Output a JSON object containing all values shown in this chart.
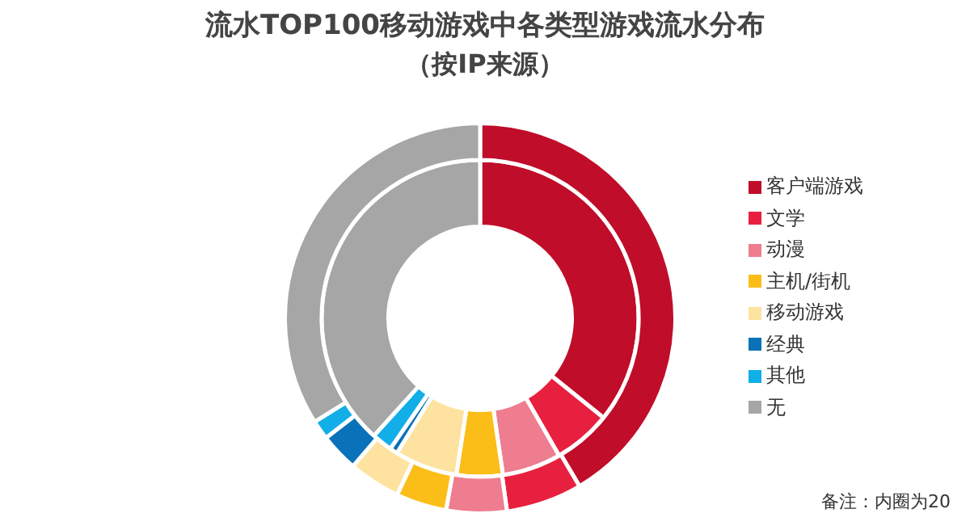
{
  "chart_data": {
    "type": "donut",
    "title": "流水TOP100移动游戏中各类型游戏流水分布",
    "subtitle": "（按IP来源）",
    "categories": [
      "客户端游戏",
      "文学",
      "动漫",
      "主机/街机",
      "移动游戏",
      "经典",
      "其他",
      "无"
    ],
    "colors": [
      "#c00d2a",
      "#e8203f",
      "#ee7d8f",
      "#fbbd18",
      "#fde39f",
      "#0a72b8",
      "#12aee8",
      "#a6a6a6"
    ],
    "series": [
      {
        "values": [
          41.5,
          6.3,
          5.0,
          4.2,
          4.3,
          3.2,
          1.6,
          33.9
        ]
      },
      {
        "values": [
          35.8,
          5.9,
          6.0,
          4.7,
          6.4,
          0.8,
          2.1,
          38.3
        ]
      }
    ],
    "legend": "right",
    "annotations": [
      "备注：内圈为20"
    ]
  }
}
